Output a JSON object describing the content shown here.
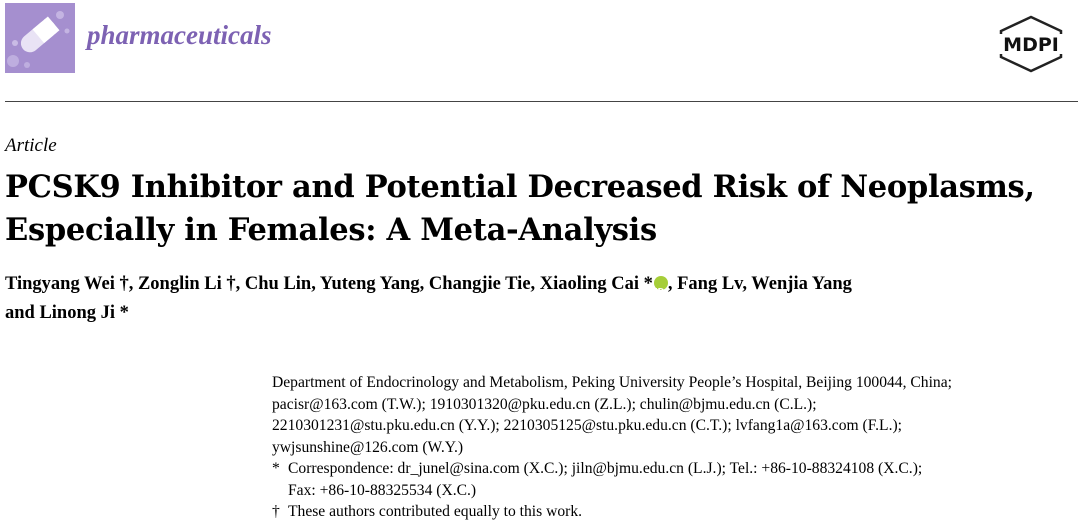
{
  "header": {
    "journal_name": "pharmaceuticals",
    "publisher": "MDPI",
    "logo_icon": "pill-capsule-icon"
  },
  "article": {
    "type": "Article",
    "title_line1": "PCSK9 Inhibitor and Potential Decreased Risk of Neoplasms,",
    "title_line2": "Especially in Females: A Meta-Analysis"
  },
  "authors": {
    "line1_before_orcid": "Tingyang Wei †, Zonglin Li †, Chu Lin, Yuteng Yang, Changjie Tie, Xiaoling Cai *",
    "line1_after_orcid": ", Fang Lv, Wenjia Yang",
    "line2": "and Linong Ji *"
  },
  "affiliation": {
    "line1": "Department of Endocrinology and Metabolism, Peking University People’s Hospital, Beijing 100044, China;",
    "line2": "pacisr@163.com (T.W.); 1910301320@pku.edu.cn (Z.L.); chulin@bjmu.edu.cn (C.L.);",
    "line3": "2210301231@stu.pku.edu.cn (Y.Y.); 2210305125@stu.pku.edu.cn (C.T.); lvfang1a@163.com (F.L.);",
    "line4": "ywjsunshine@126.com (W.Y.)"
  },
  "notes": {
    "corr_mark": "*",
    "corr_line1": "Correspondence: dr_junel@sina.com (X.C.); jiln@bjmu.edu.cn (L.J.); Tel.: +86-10-88324108 (X.C.);",
    "corr_line2": "Fax: +86-10-88325534 (X.C.)",
    "equal_mark": "†",
    "equal_text": "These authors contributed equally to this work."
  }
}
